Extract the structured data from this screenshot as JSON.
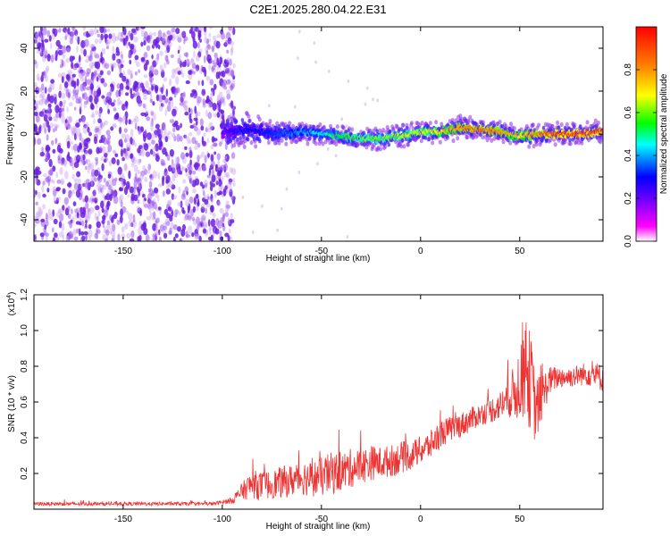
{
  "chart_data": [
    {
      "type": "heatmap",
      "title": "C2E1.2025.280.04.22.E31",
      "xlabel": "Height of straight line (km)",
      "ylabel": "Frequency (Hz)",
      "xlim": [
        -195,
        92
      ],
      "ylim": [
        -50,
        50
      ],
      "xticks": [
        -150,
        -100,
        -50,
        0,
        50
      ],
      "yticks": [
        -40,
        -20,
        0,
        20,
        40
      ],
      "colorbar": {
        "label": "Normalized spectral amplitude",
        "range": [
          0,
          1
        ],
        "ticks": [
          0.0,
          0.2,
          0.4,
          0.6,
          0.8
        ],
        "tick_labels": [
          "0.0",
          "0.2",
          "0.4",
          "0.6",
          "0.8"
        ],
        "colormap": [
          "#ffffff",
          "#ff00ff",
          "#6600ff",
          "#0000ff",
          "#00ffff",
          "#00ff00",
          "#ffff00",
          "#ff8000",
          "#ff0000"
        ]
      },
      "noise_region": {
        "x": [
          -195,
          -100
        ],
        "amplitude": 0.1
      },
      "ridge": {
        "x": [
          -100,
          -90,
          -80,
          -70,
          -60,
          -50,
          -40,
          -30,
          -20,
          -10,
          0,
          10,
          20,
          30,
          40,
          50,
          60,
          70,
          80,
          90
        ],
        "y": [
          1,
          2,
          1,
          0,
          1,
          0,
          -1,
          -2,
          -2,
          -1,
          1,
          1,
          3,
          2,
          1,
          -1,
          0,
          0,
          0,
          1
        ],
        "amplitude": [
          0.2,
          0.3,
          0.3,
          0.35,
          0.4,
          0.45,
          0.55,
          0.6,
          0.6,
          0.65,
          0.65,
          0.7,
          0.8,
          0.85,
          0.8,
          0.7,
          0.85,
          0.9,
          0.9,
          0.9
        ]
      }
    },
    {
      "type": "line",
      "xlabel": "Height of straight line (km)",
      "ylabel": "SNR (10 * v/v)",
      "scale_label": "(x10",
      "scale_exponent": "4",
      "xlim": [
        -195,
        92
      ],
      "ylim": [
        0,
        1.2
      ],
      "xticks": [
        -150,
        -100,
        -50,
        0,
        50
      ],
      "yticks": [
        0.2,
        0.4,
        0.6,
        0.8,
        1.0,
        1.2
      ],
      "ytick_labels": [
        "0.2",
        "0.4",
        "0.6",
        "0.8",
        "1.0",
        "1.2"
      ],
      "color": "#ee3333",
      "series": [
        {
          "x": [
            -195,
            -180,
            -160,
            -140,
            -120,
            -105,
            -100,
            -95,
            -90,
            -85,
            -80,
            -75,
            -70,
            -65,
            -60,
            -55,
            -50,
            -45,
            -40,
            -35,
            -30,
            -25,
            -20,
            -15,
            -10,
            -5,
            0,
            5,
            10,
            15,
            20,
            25,
            30,
            35,
            40,
            45,
            48,
            50,
            52,
            54,
            56,
            58,
            60,
            65,
            70,
            75,
            80,
            85,
            90
          ],
          "y": [
            0.03,
            0.03,
            0.03,
            0.03,
            0.03,
            0.03,
            0.04,
            0.05,
            0.1,
            0.14,
            0.13,
            0.14,
            0.15,
            0.16,
            0.18,
            0.17,
            0.18,
            0.2,
            0.21,
            0.23,
            0.24,
            0.26,
            0.26,
            0.27,
            0.29,
            0.3,
            0.33,
            0.36,
            0.42,
            0.45,
            0.47,
            0.5,
            0.53,
            0.55,
            0.58,
            0.63,
            0.66,
            0.72,
            0.8,
            0.75,
            0.7,
            0.55,
            0.6,
            0.72,
            0.74,
            0.74,
            0.75,
            0.76,
            0.74
          ],
          "noise": [
            0.01,
            0.01,
            0.01,
            0.01,
            0.01,
            0.01,
            0.01,
            0.02,
            0.05,
            0.08,
            0.08,
            0.08,
            0.09,
            0.09,
            0.1,
            0.1,
            0.11,
            0.12,
            0.11,
            0.11,
            0.1,
            0.1,
            0.09,
            0.09,
            0.09,
            0.08,
            0.08,
            0.08,
            0.08,
            0.07,
            0.07,
            0.07,
            0.06,
            0.07,
            0.08,
            0.12,
            0.17,
            0.22,
            0.3,
            0.3,
            0.25,
            0.2,
            0.15,
            0.08,
            0.06,
            0.06,
            0.06,
            0.07,
            0.08
          ]
        }
      ]
    }
  ]
}
